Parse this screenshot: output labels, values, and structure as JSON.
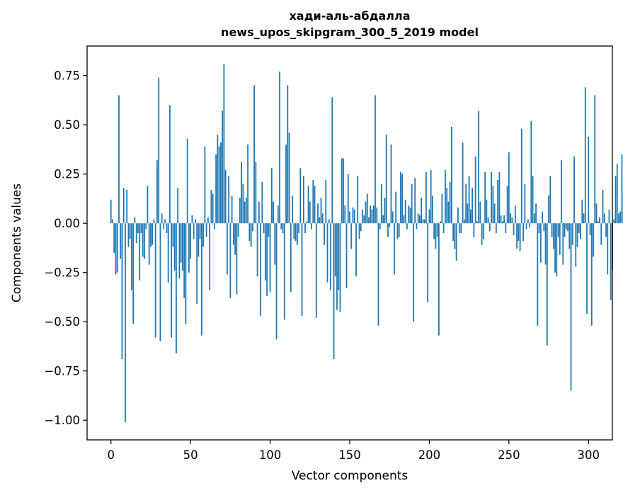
{
  "chart_data": {
    "type": "bar",
    "title_line1": "хади-аль-абдалла",
    "title_line2": "news_upos_skipgram_300_5_2019 model",
    "xlabel": "Vector components",
    "ylabel": "Components values",
    "xlim": [
      -15,
      315
    ],
    "ylim": [
      -1.1,
      0.9
    ],
    "xticks": [
      0,
      50,
      100,
      150,
      200,
      250,
      300
    ],
    "yticks": [
      -1.0,
      -0.75,
      -0.5,
      -0.25,
      0.0,
      0.25,
      0.5,
      0.75
    ],
    "ytick_labels": [
      "−1.00",
      "−0.75",
      "−0.50",
      "−0.25",
      "0.00",
      "0.25",
      "0.50",
      "0.75"
    ],
    "xtick_labels": [
      "0",
      "50",
      "100",
      "150",
      "200",
      "250",
      "300"
    ],
    "bar_color": "#1f77b4",
    "values": [
      0.12,
      0.02,
      -0.15,
      -0.26,
      -0.25,
      0.65,
      -0.18,
      -0.69,
      0.18,
      -1.01,
      0.17,
      -0.12,
      -0.08,
      -0.34,
      -0.51,
      0.03,
      -0.1,
      -0.05,
      -0.29,
      -0.05,
      -0.17,
      -0.18,
      -0.03,
      0.19,
      -0.21,
      -0.12,
      -0.11,
      0.02,
      -0.58,
      0.32,
      0.74,
      -0.6,
      0.05,
      -0.03,
      0.02,
      -0.05,
      -0.3,
      0.6,
      -0.58,
      -0.12,
      -0.24,
      -0.66,
      0.18,
      -0.28,
      -0.2,
      -0.24,
      -0.38,
      -0.51,
      0.43,
      -0.25,
      -0.18,
      0.04,
      -0.08,
      0.02,
      -0.41,
      -0.17,
      -0.08,
      -0.57,
      -0.12,
      0.39,
      -0.07,
      0.03,
      -0.34,
      0.17,
      0.15,
      -0.03,
      0.35,
      0.45,
      0.39,
      0.41,
      0.57,
      0.81,
      0.27,
      -0.26,
      0.24,
      -0.38,
      0.14,
      -0.11,
      -0.16,
      -0.36,
      -0.07,
      0.13,
      0.31,
      0.2,
      0.11,
      0.13,
      0.4,
      -0.09,
      -0.12,
      -0.04,
      0.7,
      0.31,
      -0.27,
      0.11,
      -0.47,
      0.21,
      -0.05,
      -0.29,
      -0.37,
      -0.07,
      -0.35,
      0.28,
      0.11,
      -0.21,
      -0.59,
      0.09,
      0.77,
      -0.03,
      -0.05,
      -0.49,
      0.4,
      0.7,
      0.46,
      -0.35,
      0.14,
      -0.08,
      -0.09,
      -0.11,
      -0.05,
      0.28,
      -0.47,
      0.24,
      -0.05,
      0.01,
      0.19,
      0.11,
      -0.03,
      0.22,
      0.19,
      -0.48,
      0.1,
      0.03,
      0.13,
      0.05,
      -0.11,
      0.22,
      -0.3,
      0.02,
      -0.34,
      0.64,
      -0.69,
      -0.27,
      -0.44,
      -0.34,
      -0.45,
      0.33,
      0.33,
      0.09,
      -0.33,
      0.25,
      0.06,
      -0.13,
      0.08,
      0.07,
      -0.27,
      0.24,
      -0.08,
      -0.04,
      0.07,
      0.04,
      0.11,
      0.15,
      0.03,
      0.09,
      0.07,
      0.09,
      0.65,
      0.08,
      -0.52,
      -0.03,
      0.2,
      0.04,
      0.13,
      0.45,
      -0.07,
      -0.02,
      0.4,
      0.06,
      -0.26,
      0.16,
      -0.08,
      -0.07,
      0.26,
      0.25,
      0.04,
      0.12,
      -0.03,
      0.09,
      0.08,
      0.2,
      -0.5,
      0.23,
      -0.03,
      0.05,
      0.04,
      0.13,
      0.02,
      0.02,
      0.26,
      -0.4,
      0.07,
      0.27,
      0.14,
      -0.08,
      -0.13,
      -0.07,
      -0.57,
      0.01,
      0.15,
      -0.05,
      0.27,
      0.18,
      0.11,
      0.21,
      0.49,
      -0.09,
      -0.13,
      -0.19,
      0.08,
      -0.05,
      -0.05,
      0.41,
      0.02,
      0.2,
      0.1,
      0.24,
      0.07,
      0.18,
      -0.07,
      0.34,
      0.01,
      0.57,
      0.11,
      -0.11,
      -0.08,
      0.26,
      0.12,
      0.03,
      -0.04,
      0.26,
      0.19,
      0.1,
      -0.05,
      0.22,
      0.26,
      0.04,
      0.01,
      0.04,
      -0.05,
      0.19,
      0.36,
      0.05,
      0.03,
      -0.06,
      0.09,
      -0.13,
      -0.09,
      -0.14,
      0.48,
      -0.09,
      0.2,
      -0.03,
      0.02,
      -0.02,
      0.52,
      0.24,
      0.05,
      0.1,
      -0.52,
      -0.05,
      -0.2,
      0.06,
      -0.04,
      -0.21,
      -0.62,
      0.14,
      0.24,
      -0.07,
      -0.13,
      -0.25,
      -0.27,
      -0.07,
      -0.16,
      0.32,
      -0.21,
      -0.07,
      -0.03,
      -0.04,
      -0.13,
      -0.85,
      -0.11,
      0.34,
      -0.22,
      -0.12,
      -0.05,
      -0.08,
      0.12,
      0.05,
      0.69,
      -0.46,
      0.44,
      -0.06,
      -0.52,
      -0.17,
      0.65,
      0.1,
      0.01,
      0.03,
      -0.11,
      0.17,
      0.05,
      -0.07,
      -0.26,
      0.07,
      -0.39,
      -0.24,
      0.02,
      0.24,
      0.3,
      0.05,
      0.06,
      0.35,
      0.14
    ]
  }
}
